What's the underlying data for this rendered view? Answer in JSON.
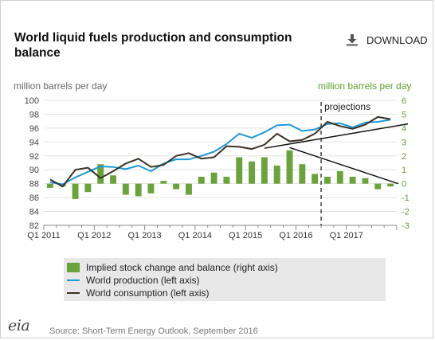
{
  "header": {
    "title": "World liquid fuels production and consumption balance",
    "download_label": "DOWNLOAD",
    "download_icon": "download-icon"
  },
  "axes": {
    "left_unit": "million barrels per day",
    "right_unit": "million barrels per day"
  },
  "chart_data": {
    "type": "bar+line",
    "x_labels": [
      "Q1 2011",
      "Q1 2012",
      "Q1 2013",
      "Q1 2014",
      "Q1 2015",
      "Q1 2016",
      "Q1 2017"
    ],
    "quarters": [
      "2011Q1",
      "2011Q2",
      "2011Q3",
      "2011Q4",
      "2012Q1",
      "2012Q2",
      "2012Q3",
      "2012Q4",
      "2013Q1",
      "2013Q2",
      "2013Q3",
      "2013Q4",
      "2014Q1",
      "2014Q2",
      "2014Q3",
      "2014Q4",
      "2015Q1",
      "2015Q2",
      "2015Q3",
      "2015Q4",
      "2016Q1",
      "2016Q2",
      "2016Q3",
      "2016Q4",
      "2017Q1",
      "2017Q2",
      "2017Q3",
      "2017Q4"
    ],
    "left_axis": {
      "ylim": [
        82,
        100
      ],
      "ticks": [
        82,
        84,
        86,
        88,
        90,
        92,
        94,
        96,
        98,
        100
      ]
    },
    "right_axis": {
      "ylim": [
        -3,
        6
      ],
      "ticks": [
        -3,
        -2,
        -1,
        0,
        1,
        2,
        3,
        4,
        5,
        6
      ]
    },
    "series": [
      {
        "name": "Implied stock change and balance (right axis)",
        "type": "bar",
        "axis": "right",
        "color": "#6aa23c",
        "values": [
          -0.3,
          -0.2,
          -1.1,
          -0.6,
          1.4,
          0.6,
          -0.8,
          -0.9,
          -0.7,
          0.2,
          -0.4,
          -0.8,
          0.5,
          0.8,
          0.5,
          1.9,
          1.6,
          1.9,
          1.3,
          2.4,
          1.4,
          0.7,
          0.5,
          0.9,
          0.5,
          0.4,
          -0.4,
          -0.2
        ]
      },
      {
        "name": "World production (left axis)",
        "type": "line",
        "axis": "left",
        "color": "#1e9ad6",
        "values": [
          88.2,
          87.9,
          88.9,
          89.7,
          90.5,
          90.4,
          90.1,
          90.6,
          89.8,
          90.9,
          91.5,
          91.5,
          92.0,
          92.6,
          93.7,
          95.2,
          94.6,
          95.4,
          96.4,
          96.5,
          95.6,
          95.8,
          96.6,
          96.7,
          96.1,
          96.8,
          96.9,
          97.2
        ]
      },
      {
        "name": "World consumption (left axis)",
        "type": "line",
        "axis": "left",
        "color": "#3b3224",
        "values": [
          88.6,
          87.6,
          90.0,
          90.3,
          88.8,
          89.8,
          90.9,
          91.6,
          90.4,
          90.7,
          92.0,
          92.4,
          91.6,
          91.8,
          93.4,
          93.3,
          93.0,
          93.6,
          95.2,
          94.1,
          94.3,
          95.2,
          96.9,
          96.3,
          95.9,
          96.5,
          97.6,
          97.3
        ]
      }
    ],
    "annotations": [
      {
        "text": "projections",
        "after_quarter": "2016Q2"
      }
    ],
    "grid": true,
    "legend": "below"
  },
  "legend": {
    "items": [
      {
        "label": "Implied stock change and balance (right axis)"
      },
      {
        "label": "World production (left axis)"
      },
      {
        "label": "World consumption (left axis)"
      }
    ]
  },
  "footer": {
    "logo_text": "eia",
    "source": "Source: Short-Term Energy Outlook, September 2016"
  }
}
